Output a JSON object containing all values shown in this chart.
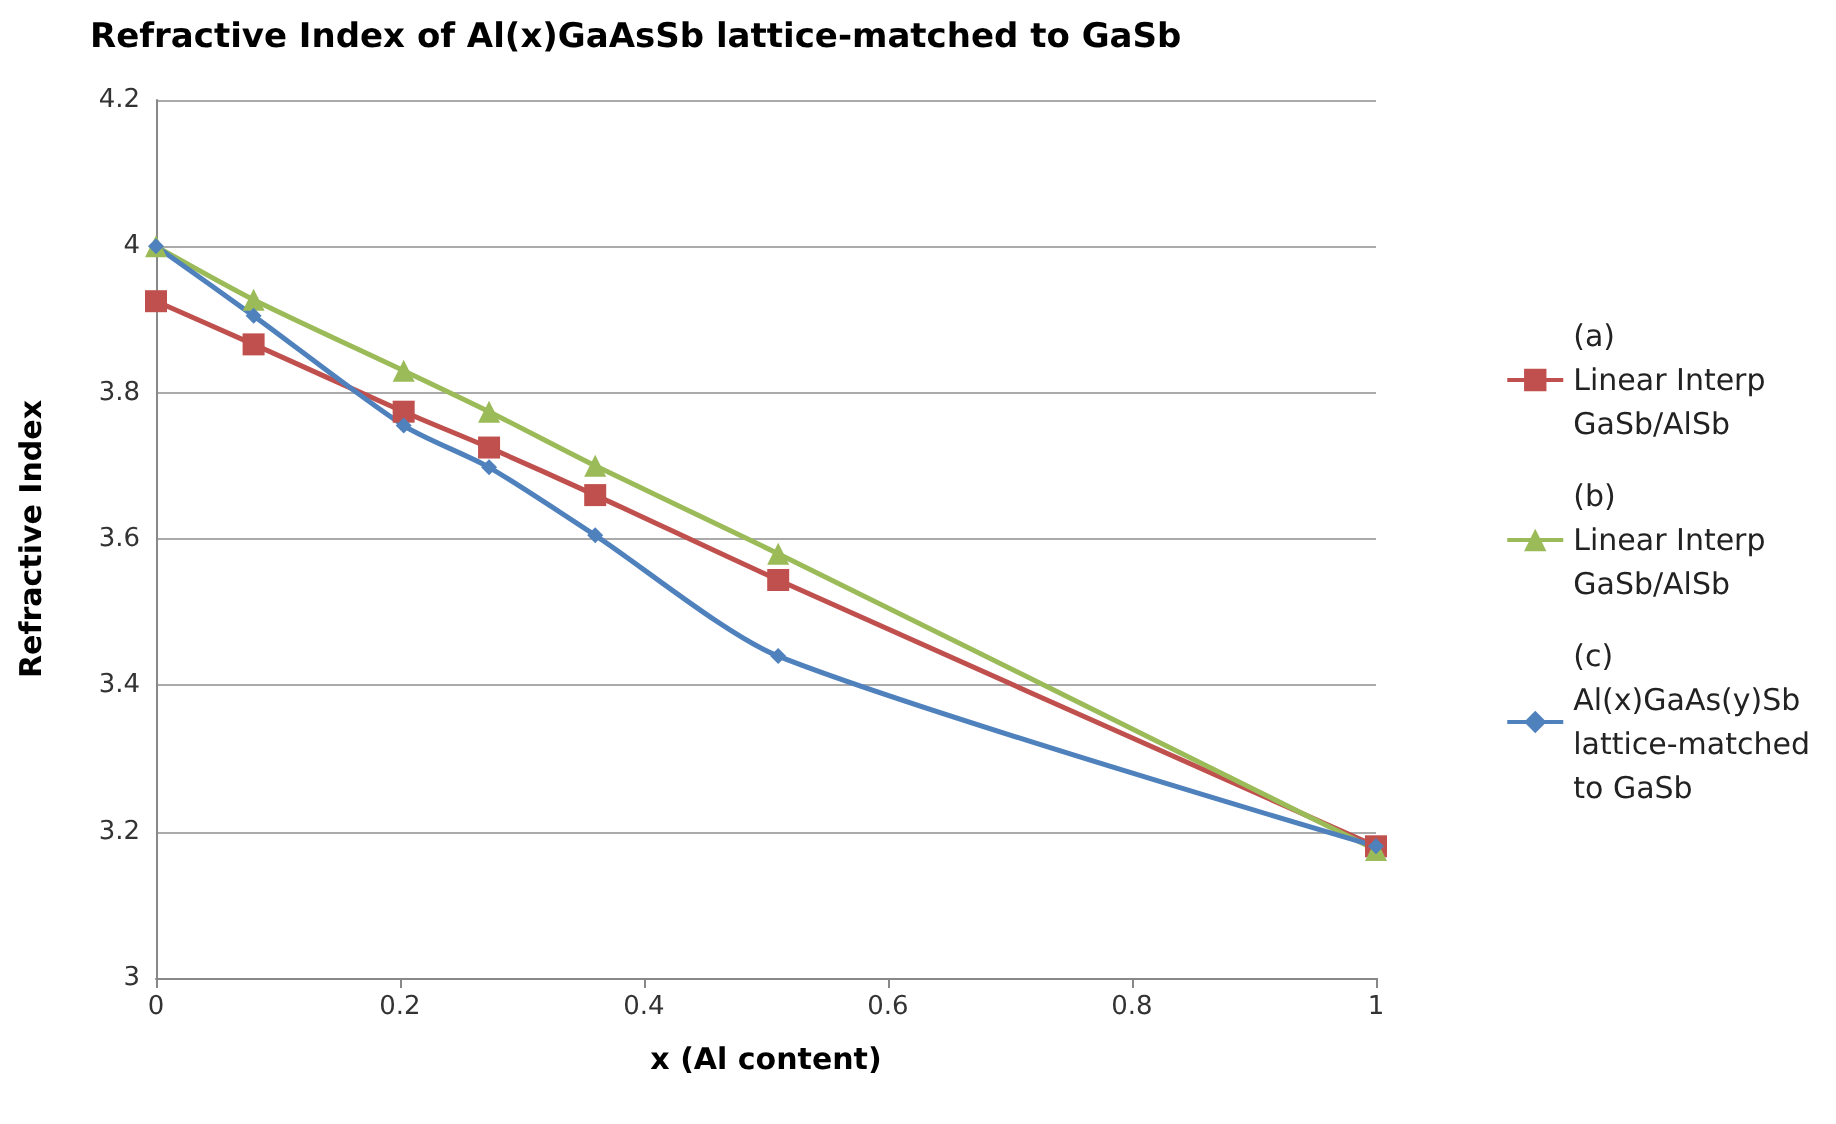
{
  "chart_data": {
    "type": "line",
    "title": "Refractive Index of Al(x)GaAsSb lattice-matched to GaSb",
    "xlabel": "x (Al content)",
    "ylabel": "Refractive Index",
    "x": [
      0,
      0.08,
      0.203,
      0.273,
      0.36,
      0.51,
      1
    ],
    "series": [
      {
        "name": "(a)\nLinear Interp\nGaSb/AlSb",
        "color": "#c0504d",
        "marker": "square",
        "values": [
          3.925,
          3.866,
          3.774,
          3.725,
          3.66,
          3.544,
          3.18
        ]
      },
      {
        "name": "(b)\nLinear Interp\nGaSb/AlSb",
        "color": "#9bbb59",
        "marker": "triangle",
        "values": [
          4.0,
          3.927,
          3.83,
          3.774,
          3.7,
          3.58,
          3.175
        ]
      },
      {
        "name": "(c)\nAl(x)GaAs(y)Sb\nlattice-matched\nto GaSb",
        "color": "#4f81bd",
        "marker": "diamond",
        "values": [
          4.0,
          3.905,
          3.755,
          3.698,
          3.605,
          3.44,
          3.18
        ]
      }
    ],
    "xlim": [
      0,
      1
    ],
    "xticks": [
      0,
      0.2,
      0.4,
      0.6,
      0.8,
      1
    ],
    "ylim": [
      3,
      4.2
    ],
    "yticks": [
      3,
      3.2,
      3.4,
      3.6,
      3.8,
      4,
      4.2
    ],
    "grid": "y",
    "legend": "right"
  }
}
